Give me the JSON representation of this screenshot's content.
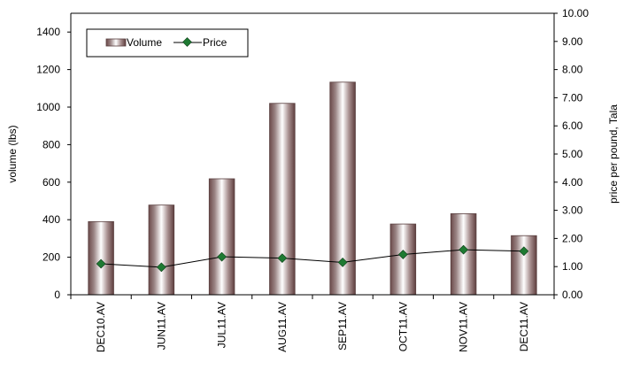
{
  "chart_data": {
    "type": "bar",
    "categories": [
      "DEC10.AV",
      "JUN11.AV",
      "JUL11.AV",
      "AUG11.AV",
      "SEP11.AV",
      "OCT11.AV",
      "NOV11.AV",
      "DEC11.AV"
    ],
    "series": [
      {
        "name": "Volume",
        "type": "bar",
        "axis": "left",
        "values": [
          390,
          478,
          618,
          1020,
          1133,
          377,
          432,
          315
        ]
      },
      {
        "name": "Price",
        "type": "line",
        "axis": "right",
        "values": [
          1.1,
          0.98,
          1.35,
          1.3,
          1.15,
          1.43,
          1.6,
          1.55
        ]
      }
    ],
    "ylabel": "volume (lbs)",
    "y2label": "price per pound, Tala",
    "ylim": [
      0,
      1500
    ],
    "y2lim": [
      0,
      10
    ],
    "yticks": [
      "0",
      "200",
      "400",
      "600",
      "800",
      "1000",
      "1200",
      "1400"
    ],
    "y2ticks": [
      "0.00",
      "1.00",
      "2.00",
      "3.00",
      "4.00",
      "5.00",
      "6.00",
      "7.00",
      "8.00",
      "9.00",
      "10.00"
    ],
    "legend": {
      "placement": "top-left"
    },
    "grid": false,
    "colors": {
      "marker": "#1e7a32",
      "bar_edge": "#5a4040",
      "line": "#000000"
    }
  }
}
